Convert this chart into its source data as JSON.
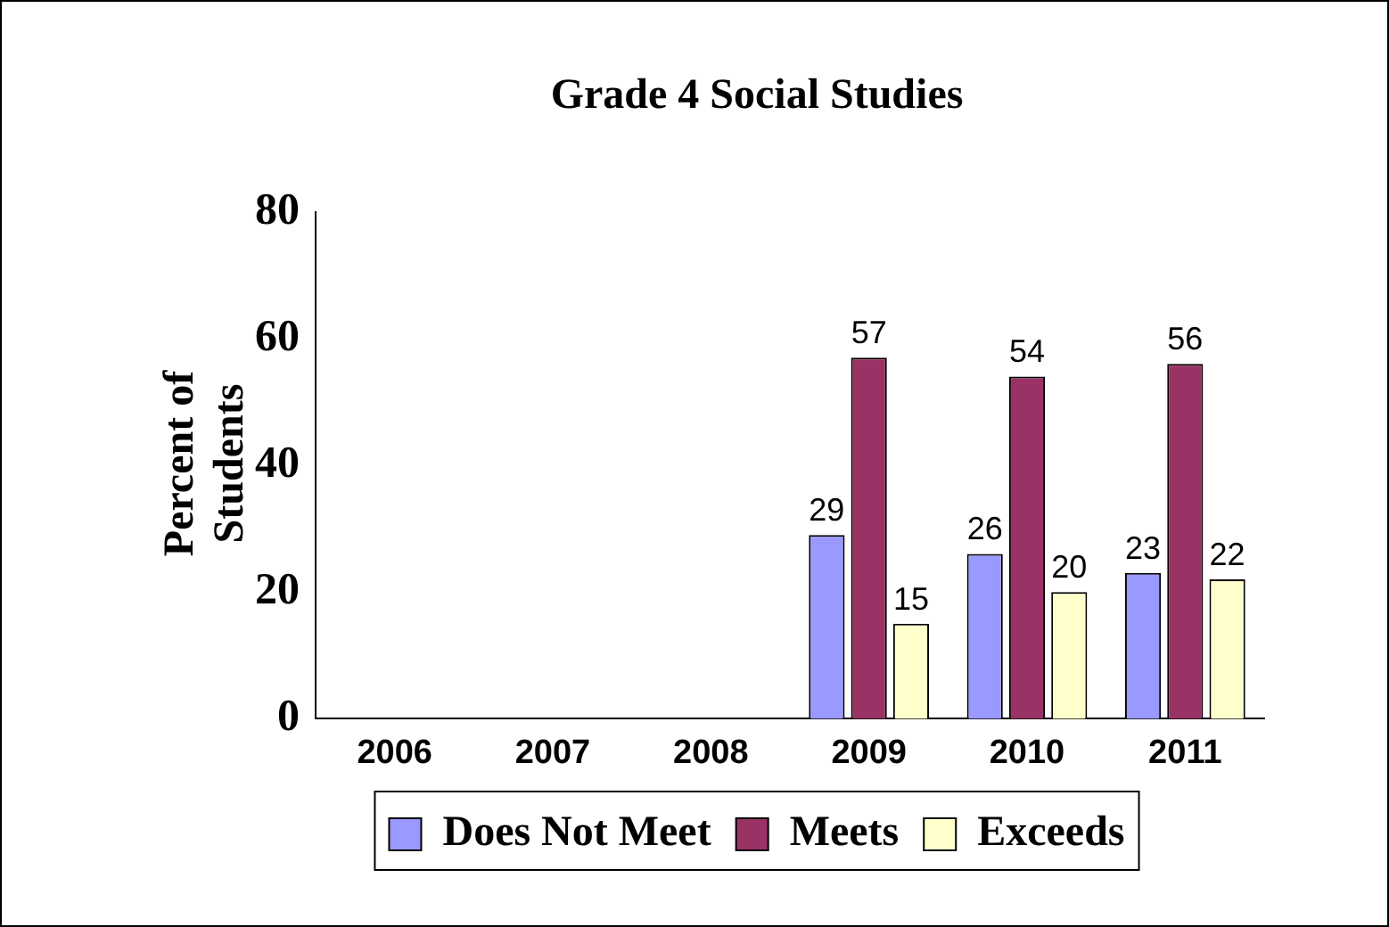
{
  "chart_data": {
    "type": "bar",
    "title": "Grade 4 Social Studies",
    "ylabel": "Percent of Students",
    "categories": [
      "2006",
      "2007",
      "2008",
      "2009",
      "2010",
      "2011"
    ],
    "series": [
      {
        "name": "Does Not Meet",
        "color": "#9999ff",
        "values": [
          null,
          null,
          null,
          29,
          26,
          23
        ]
      },
      {
        "name": "Meets",
        "color": "#993366",
        "values": [
          null,
          null,
          null,
          57,
          54,
          56
        ]
      },
      {
        "name": "Exceeds",
        "color": "#ffffcc",
        "values": [
          null,
          null,
          null,
          15,
          20,
          22
        ]
      }
    ],
    "ylim": [
      0,
      80
    ],
    "yticks": [
      0,
      20,
      40,
      60,
      80
    ],
    "grid": false,
    "legend": "bottom",
    "data_labels": true
  }
}
